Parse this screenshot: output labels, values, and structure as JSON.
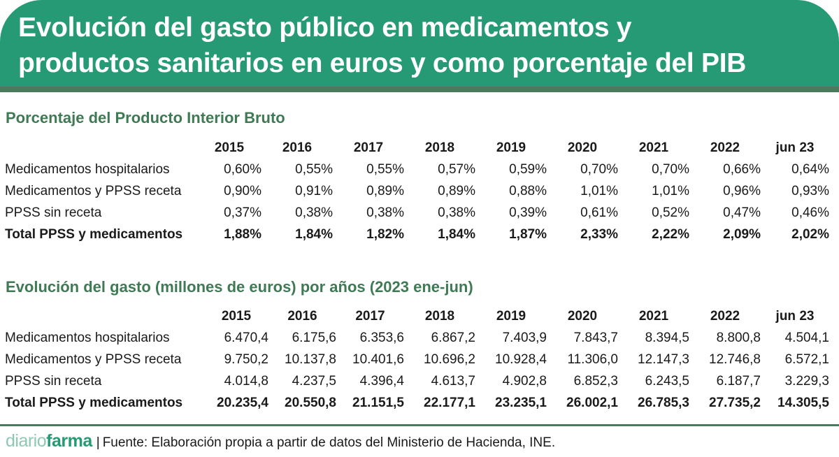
{
  "header": {
    "title_line1": "Evolución del gasto público en medicamentos y",
    "title_line2": "productos sanitarios en euros y como porcentaje del PIB"
  },
  "chart_data": [
    {
      "type": "table",
      "title": "Porcentaje del Producto Interior Bruto",
      "columns": [
        "2015",
        "2016",
        "2017",
        "2018",
        "2019",
        "2020",
        "2021",
        "2022",
        "jun 23"
      ],
      "rows": [
        {
          "label": "Medicamentos hospitalarios",
          "bold": false,
          "values": [
            "0,60%",
            "0,55%",
            "0,55%",
            "0,57%",
            "0,59%",
            "0,70%",
            "0,70%",
            "0,66%",
            "0,64%"
          ]
        },
        {
          "label": "Medicamentos y PPSS receta",
          "bold": false,
          "values": [
            "0,90%",
            "0,91%",
            "0,89%",
            "0,89%",
            "0,88%",
            "1,01%",
            "1,01%",
            "0,96%",
            "0,93%"
          ]
        },
        {
          "label": "PPSS sin receta",
          "bold": false,
          "values": [
            "0,37%",
            "0,38%",
            "0,38%",
            "0,38%",
            "0,39%",
            "0,61%",
            "0,52%",
            "0,47%",
            "0,46%"
          ]
        },
        {
          "label": "Total PPSS y medicamentos",
          "bold": true,
          "values": [
            "1,88%",
            "1,84%",
            "1,82%",
            "1,84%",
            "1,87%",
            "2,33%",
            "2,22%",
            "2,09%",
            "2,02%"
          ]
        }
      ]
    },
    {
      "type": "table",
      "title": "Evolución del gasto (millones de euros) por años (2023 ene-jun)",
      "columns": [
        "2015",
        "2016",
        "2017",
        "2018",
        "2019",
        "2020",
        "2021",
        "2022",
        "jun 23"
      ],
      "rows": [
        {
          "label": "Medicamentos hospitalarios",
          "bold": false,
          "values": [
            "6.470,4",
            "6.175,6",
            "6.353,6",
            "6.867,2",
            "7.403,9",
            "7.843,7",
            "8.394,5",
            "8.800,8",
            "4.504,1"
          ]
        },
        {
          "label": "Medicamentos y PPSS receta",
          "bold": false,
          "values": [
            "9.750,2",
            "10.137,8",
            "10.401,6",
            "10.696,2",
            "10.928,4",
            "11.306,0",
            "12.147,3",
            "12.746,8",
            "6.572,1"
          ]
        },
        {
          "label": "PPSS sin receta",
          "bold": false,
          "values": [
            "4.014,8",
            "4.237,5",
            "4.396,4",
            "4.613,7",
            "4.902,8",
            "6.852,3",
            "6.243,5",
            "6.187,7",
            "3.229,3"
          ]
        },
        {
          "label": "Total PPSS y medicamentos",
          "bold": true,
          "values": [
            "20.235,4",
            "20.550,8",
            "21.151,5",
            "22.177,1",
            "23.235,1",
            "26.002,1",
            "26.785,3",
            "27.735,2",
            "14.305,5"
          ]
        }
      ]
    }
  ],
  "footer": {
    "logo_part1": "diario",
    "logo_part2": "farma",
    "separator": "|",
    "source": "Fuente: Elaboración propia a partir de datos del Ministerio de Hacienda, INE."
  },
  "colors": {
    "header_bg": "#269a74",
    "header_strip": "#4b7b5c",
    "section_title": "#3f7a55",
    "logo_light": "#8cc9b0",
    "logo_dark": "#269a74"
  }
}
